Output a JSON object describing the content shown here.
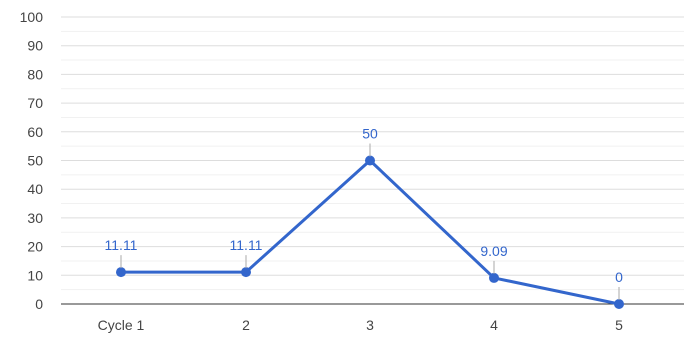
{
  "chart_data": {
    "type": "line",
    "categories": [
      "Cycle 1",
      "2",
      "3",
      "4",
      "5"
    ],
    "series": [
      {
        "values": [
          11.11,
          11.11,
          50,
          9.09,
          0
        ],
        "data_labels": [
          "11.11",
          "11.11",
          "50",
          "9.09",
          "0"
        ],
        "color": "#3366cc"
      }
    ],
    "ylim": [
      0,
      100
    ],
    "yticks": [
      "0",
      "10",
      "20",
      "30",
      "40",
      "50",
      "60",
      "70",
      "80",
      "90",
      "100"
    ],
    "grid": true,
    "minor_grid": true,
    "title": "",
    "xlabel": "",
    "ylabel": ""
  }
}
